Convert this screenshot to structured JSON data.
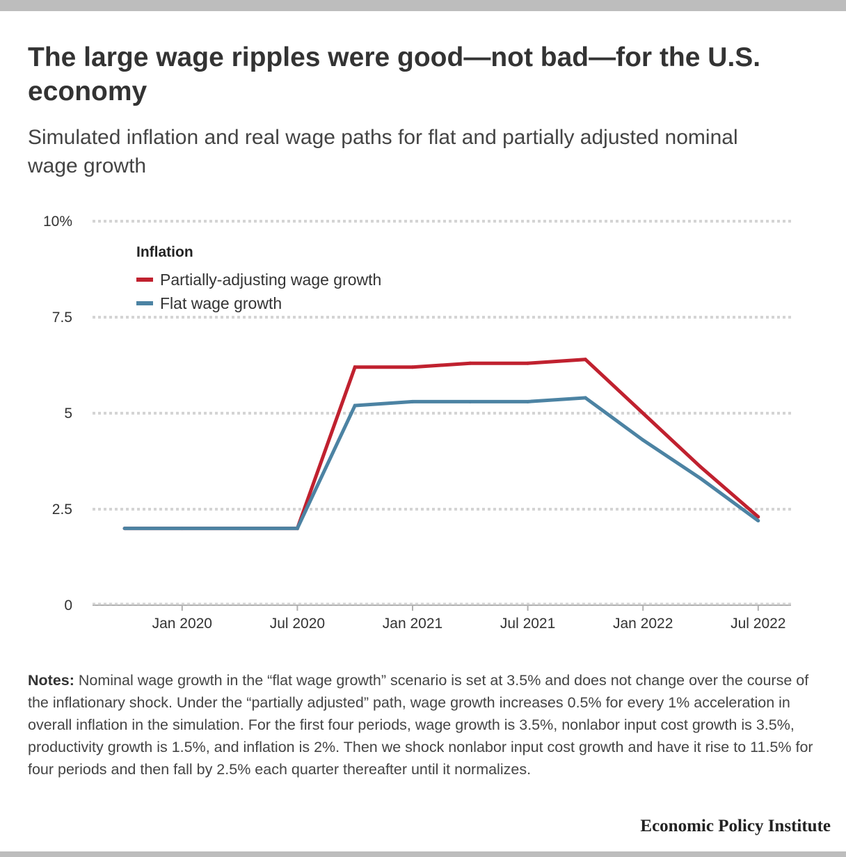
{
  "title": "The large wage ripples were good—not bad—for the U.S. economy",
  "subtitle": "Simulated inflation and real wage paths for flat and partially adjusted nominal wage growth",
  "notes": {
    "label": "Notes:",
    "text": " Nominal wage growth in the “flat wage growth” scenario is set at 3.5% and does not change over the course of the inflationary shock. Under the “partially adjusted” path, wage growth increases 0.5% for every 1% acceleration in overall inflation in the simulation. For the first four periods, wage growth is 3.5%, nonlabor input cost growth is 3.5%, productivity growth is 1.5%, and inflation is 2%. Then we shock nonlabor input cost growth and have it rise to 11.5% for four periods and then fall by 2.5% each quarter thereafter until it normalizes."
  },
  "source": "Economic Policy Institute",
  "colors": {
    "partial": "#c0212f",
    "flat": "#4c83a3",
    "grid": "#d4d4d4",
    "axis": "#b0b0b0"
  },
  "chart_data": {
    "type": "line",
    "x": [
      "2019-10",
      "2020-01",
      "2020-04",
      "2020-07",
      "2020-10",
      "2021-01",
      "2021-04",
      "2021-07",
      "2021-10",
      "2022-01",
      "2022-04",
      "2022-07"
    ],
    "x_tick_labels": [
      {
        "x": "2020-01",
        "label": "Jan 2020"
      },
      {
        "x": "2020-07",
        "label": "Jul 2020"
      },
      {
        "x": "2021-01",
        "label": "Jan 2021"
      },
      {
        "x": "2021-07",
        "label": "Jul 2021"
      },
      {
        "x": "2022-01",
        "label": "Jan 2022"
      },
      {
        "x": "2022-07",
        "label": "Jul 2022"
      }
    ],
    "y_ticks": [
      {
        "value": 0,
        "label": "0"
      },
      {
        "value": 2.5,
        "label": "2.5"
      },
      {
        "value": 5,
        "label": "5"
      },
      {
        "value": 7.5,
        "label": "7.5"
      },
      {
        "value": 10,
        "label": "10%"
      }
    ],
    "ylim": [
      0,
      10
    ],
    "grid": true,
    "legend": {
      "title": "Inflation",
      "position": "top-left"
    },
    "series": [
      {
        "name": "Partially-adjusting wage growth",
        "color": "#c0212f",
        "values": [
          2,
          2,
          2,
          2,
          6.2,
          6.2,
          6.3,
          6.3,
          6.4,
          5,
          3.6,
          2.3
        ]
      },
      {
        "name": "Flat wage growth",
        "color": "#4c83a3",
        "values": [
          2,
          2,
          2,
          2,
          5.2,
          5.3,
          5.3,
          5.3,
          5.4,
          4.3,
          3.3,
          2.2
        ]
      }
    ]
  }
}
